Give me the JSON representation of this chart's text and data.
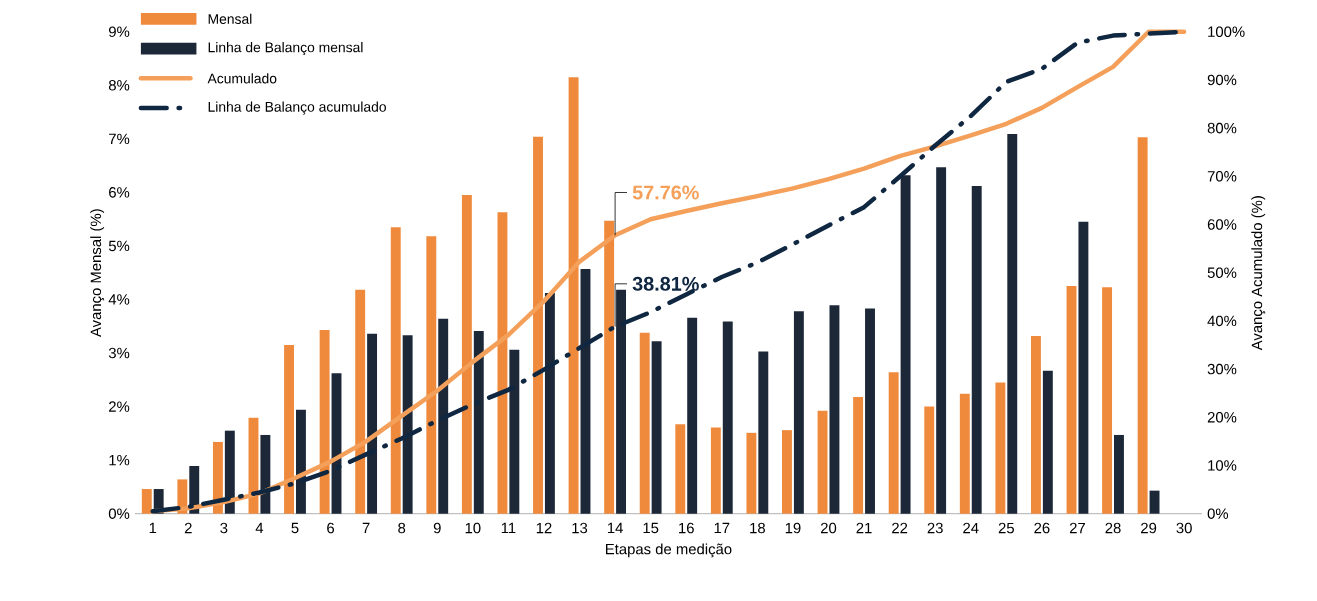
{
  "chart_data": {
    "type": "bar",
    "xlabel": "Etapas de medição",
    "ylabel": "Avanço Mensal (%)",
    "y2label": "Avanço Acumulado (%)",
    "categories": [
      "1",
      "2",
      "3",
      "4",
      "5",
      "6",
      "7",
      "8",
      "9",
      "10",
      "11",
      "12",
      "13",
      "14",
      "15",
      "16",
      "17",
      "18",
      "19",
      "20",
      "21",
      "22",
      "23",
      "24",
      "25",
      "26",
      "27",
      "28",
      "29",
      "30"
    ],
    "series": [
      {
        "name": "Mensal",
        "color": "#ef8a3c",
        "values": [
          0.46,
          0.64,
          1.34,
          1.79,
          3.15,
          3.43,
          4.18,
          5.35,
          5.18,
          5.95,
          5.63,
          7.04,
          8.15,
          5.47,
          3.38,
          1.67,
          1.61,
          1.51,
          1.56,
          1.92,
          2.18,
          2.64,
          2.0,
          2.24,
          2.45,
          3.32,
          4.25,
          4.23,
          7.03,
          null
        ]
      },
      {
        "name": "Linha de Balanço mensal",
        "color": "#1c2838",
        "values": [
          0.46,
          0.89,
          1.55,
          1.47,
          1.94,
          2.62,
          3.36,
          3.33,
          3.64,
          3.41,
          3.06,
          4.12,
          4.57,
          4.18,
          3.22,
          3.66,
          3.59,
          3.03,
          3.78,
          3.89,
          3.83,
          6.32,
          6.47,
          6.12,
          7.09,
          2.67,
          5.45,
          1.47,
          0.43,
          null
        ]
      },
      {
        "name": "Acumulado",
        "type": "line",
        "axis": "y2",
        "color": "#f4a05a",
        "values": [
          0.5,
          1.1,
          2.4,
          4.2,
          7.4,
          10.8,
          15.0,
          20.3,
          25.5,
          31.5,
          37.1,
          44.1,
          52.3,
          57.76,
          61.1,
          62.8,
          64.4,
          65.9,
          67.5,
          69.4,
          71.6,
          74.2,
          76.2,
          78.5,
          80.9,
          84.2,
          88.5,
          92.7,
          100,
          100
        ],
        "value_labels": [
          null,
          null,
          null,
          null,
          null,
          null,
          null,
          null,
          null,
          null,
          null,
          null,
          null,
          "57.76%",
          null,
          null,
          null,
          null,
          null,
          null,
          null,
          null,
          null,
          null,
          null,
          null,
          null,
          null,
          null,
          null
        ]
      },
      {
        "name": "Linha de Balanço acumulado",
        "type": "line",
        "axis": "y2",
        "color": "#0f2740",
        "line_style": "dashed",
        "values": [
          0.5,
          1.4,
          2.9,
          4.4,
          6.3,
          8.9,
          12.3,
          15.6,
          19.3,
          22.7,
          25.7,
          29.9,
          34.4,
          38.81,
          41.8,
          45.5,
          49.1,
          52.1,
          55.9,
          59.8,
          63.6,
          69.9,
          76.4,
          82.5,
          89.6,
          92.3,
          97.7,
          99.2,
          99.6,
          100
        ],
        "value_labels": [
          null,
          null,
          null,
          null,
          null,
          null,
          null,
          null,
          null,
          null,
          null,
          null,
          null,
          "38.81%",
          null,
          null,
          null,
          null,
          null,
          null,
          null,
          null,
          null,
          null,
          null,
          null,
          null,
          null,
          null,
          null
        ]
      }
    ],
    "ylim": [
      0,
      9
    ],
    "yticks": [
      {
        "value": 0,
        "label": "0%"
      },
      {
        "value": 1,
        "label": "1%"
      },
      {
        "value": 2,
        "label": "2%"
      },
      {
        "value": 3,
        "label": "3%"
      },
      {
        "value": 4,
        "label": "4%"
      },
      {
        "value": 5,
        "label": "5%"
      },
      {
        "value": 6,
        "label": "6%"
      },
      {
        "value": 7,
        "label": "7%"
      },
      {
        "value": 8,
        "label": "8%"
      },
      {
        "value": 9,
        "label": "9%"
      }
    ],
    "y2lim": [
      0,
      100
    ],
    "y2ticks": [
      {
        "value": 0,
        "label": "0%"
      },
      {
        "value": 10,
        "label": "10%"
      },
      {
        "value": 20,
        "label": "20%"
      },
      {
        "value": 30,
        "label": "30%"
      },
      {
        "value": 40,
        "label": "40%"
      },
      {
        "value": 50,
        "label": "50%"
      },
      {
        "value": 60,
        "label": "60%"
      },
      {
        "value": 70,
        "label": "70%"
      },
      {
        "value": 80,
        "label": "80%"
      },
      {
        "value": 90,
        "label": "90%"
      },
      {
        "value": 100,
        "label": "100%"
      }
    ],
    "legend": "top left",
    "grid": false
  }
}
